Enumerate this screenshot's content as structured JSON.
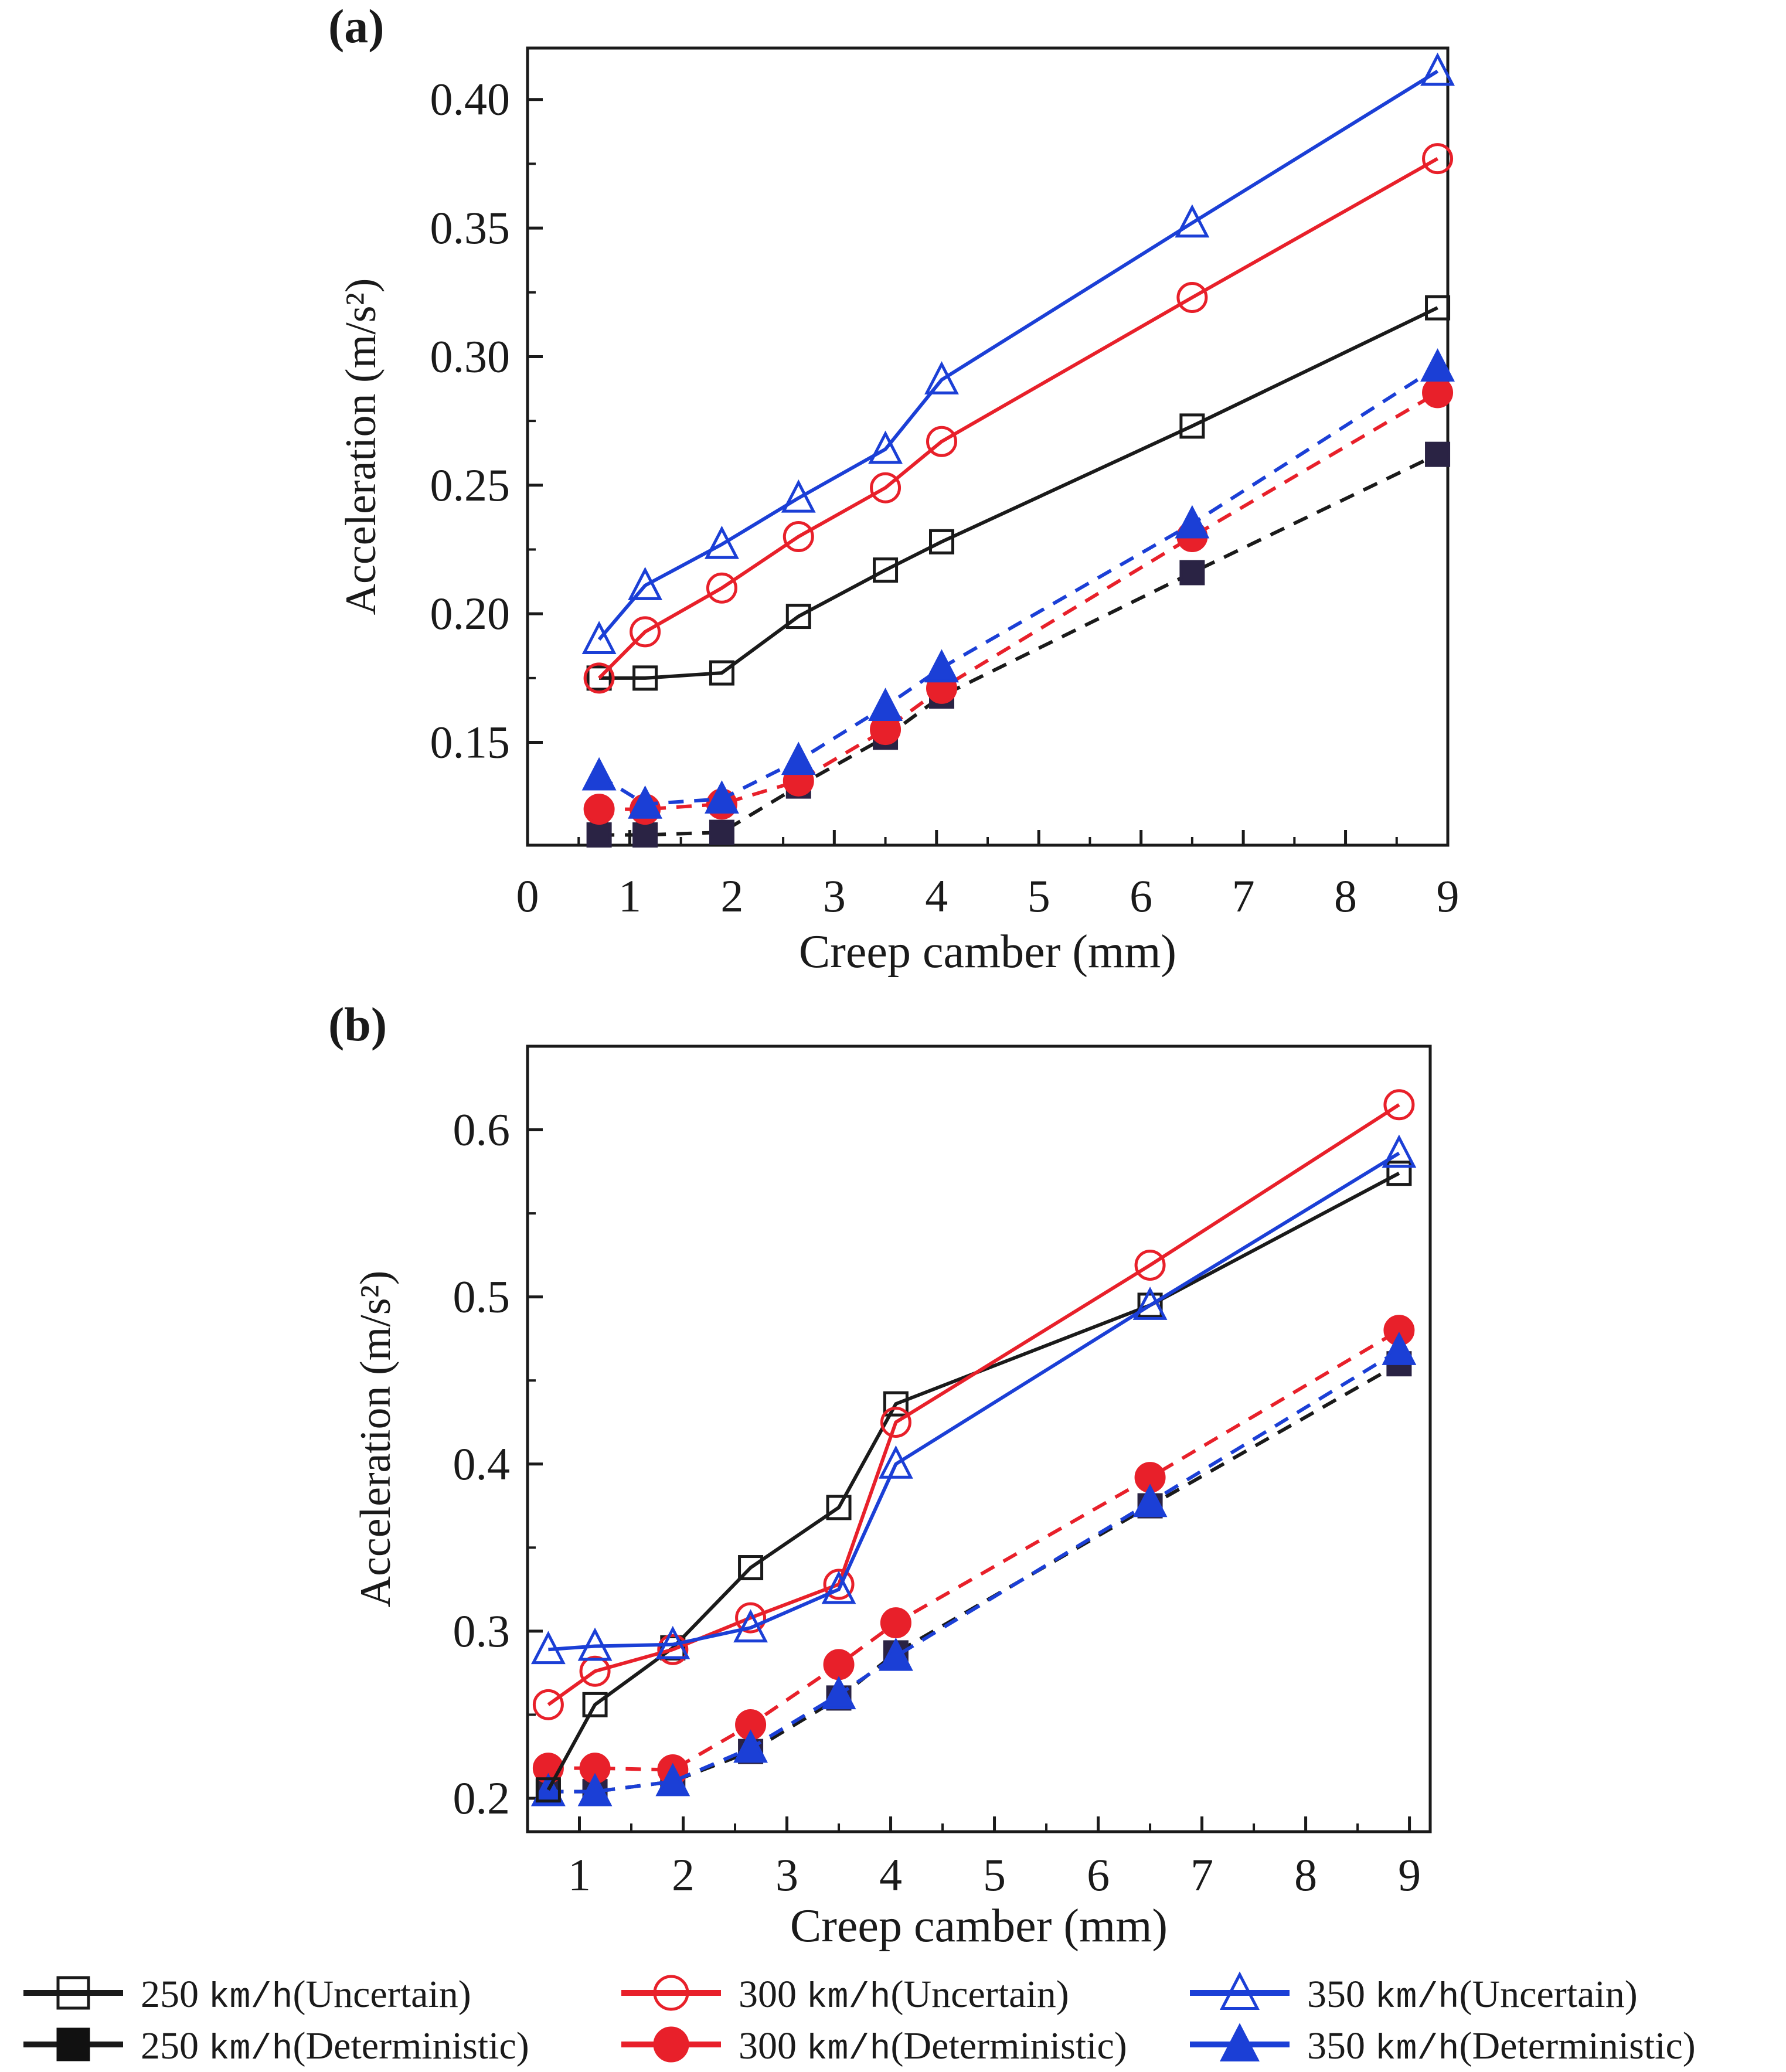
{
  "colors": {
    "s250": "#1a1a1a",
    "s300": "#e8202a",
    "s350": "#1b3fd6",
    "s250_det_fill": "#2a2344"
  },
  "legend": {
    "items": [
      {
        "key": "s250",
        "speed": "250",
        "unit": "km/h",
        "kind": "(Uncertain)",
        "marker": "square",
        "filled": false
      },
      {
        "key": "s250",
        "speed": "250",
        "unit": "km/h",
        "kind": "(Deterministic)",
        "marker": "square",
        "filled": true
      },
      {
        "key": "s300",
        "speed": "300",
        "unit": "km/h",
        "kind": "(Uncertain)",
        "marker": "circle",
        "filled": false
      },
      {
        "key": "s300",
        "speed": "300",
        "unit": "km/h",
        "kind": "(Deterministic)",
        "marker": "circle",
        "filled": true
      },
      {
        "key": "s350",
        "speed": "350",
        "unit": "km/h",
        "kind": "(Uncertain)",
        "marker": "triangle",
        "filled": false
      },
      {
        "key": "s350",
        "speed": "350",
        "unit": "km/h",
        "kind": "(Deterministic)",
        "marker": "triangle",
        "filled": true
      }
    ]
  },
  "chart_data": [
    {
      "panel": "(a)",
      "type": "line",
      "xlabel": "Creep camber (mm)",
      "ylabel": "Acceleration (m/s²)",
      "xlim": [
        0,
        9
      ],
      "ylim": [
        0.11,
        0.42
      ],
      "xticks": [
        "0",
        "1",
        "2",
        "3",
        "4",
        "5",
        "6",
        "7",
        "8",
        "9"
      ],
      "yticks": [
        "0.15",
        "0.20",
        "0.25",
        "0.30",
        "0.35",
        "0.40"
      ],
      "x": [
        0.7,
        1.15,
        1.9,
        2.65,
        3.5,
        4.05,
        6.5,
        8.9
      ],
      "series": [
        {
          "name": "250 km/h (Uncertain)",
          "color": "s250",
          "marker": "square",
          "filled": false,
          "dashed": false,
          "values": [
            0.175,
            0.175,
            0.177,
            0.199,
            0.217,
            0.228,
            0.273,
            0.319
          ]
        },
        {
          "name": "300 km/h (Uncertain)",
          "color": "s300",
          "marker": "circle",
          "filled": false,
          "dashed": false,
          "values": [
            0.175,
            0.193,
            0.21,
            0.23,
            0.249,
            0.267,
            0.323,
            0.377
          ]
        },
        {
          "name": "350 km/h (Uncertain)",
          "color": "s350",
          "marker": "triangle",
          "filled": false,
          "dashed": false,
          "values": [
            0.19,
            0.211,
            0.227,
            0.245,
            0.264,
            0.291,
            0.352,
            0.411
          ]
        },
        {
          "name": "250 km/h (Deterministic)",
          "color": "s250",
          "marker": "square",
          "filled": true,
          "dashed": true,
          "values": [
            0.114,
            0.114,
            0.115,
            0.133,
            0.152,
            0.168,
            0.216,
            0.262
          ]
        },
        {
          "name": "300 km/h (Deterministic)",
          "color": "s300",
          "marker": "circle",
          "filled": true,
          "dashed": true,
          "values": [
            0.124,
            0.124,
            0.126,
            0.135,
            0.155,
            0.171,
            0.23,
            0.286
          ]
        },
        {
          "name": "350 km/h (Deterministic)",
          "color": "s350",
          "marker": "triangle",
          "filled": true,
          "dashed": true,
          "values": [
            0.137,
            0.126,
            0.128,
            0.143,
            0.164,
            0.179,
            0.235,
            0.296
          ]
        }
      ]
    },
    {
      "panel": "(b)",
      "type": "line",
      "xlabel": "Creep camber (mm)",
      "ylabel": "Acceleration (m/s²)",
      "xlim": [
        0.5,
        9.2
      ],
      "ylim": [
        0.18,
        0.65
      ],
      "xticks": [
        "1",
        "2",
        "3",
        "4",
        "5",
        "6",
        "7",
        "8",
        "9"
      ],
      "yticks": [
        "0.2",
        "0.3",
        "0.4",
        "0.5",
        "0.6"
      ],
      "x": [
        0.7,
        1.15,
        1.9,
        2.65,
        3.5,
        4.05,
        6.5,
        8.9
      ],
      "series": [
        {
          "name": "250 km/h (Uncertain)",
          "color": "s250",
          "marker": "square",
          "filled": false,
          "dashed": false,
          "values": [
            0.205,
            0.256,
            0.29,
            0.338,
            0.374,
            0.436,
            0.495,
            0.574
          ]
        },
        {
          "name": "300 km/h (Uncertain)",
          "color": "s300",
          "marker": "circle",
          "filled": false,
          "dashed": false,
          "values": [
            0.256,
            0.276,
            0.289,
            0.308,
            0.328,
            0.425,
            0.519,
            0.615
          ]
        },
        {
          "name": "350 km/h (Uncertain)",
          "color": "s350",
          "marker": "triangle",
          "filled": false,
          "dashed": false,
          "values": [
            0.289,
            0.291,
            0.292,
            0.302,
            0.325,
            0.4,
            0.495,
            0.586
          ]
        },
        {
          "name": "250 km/h (Deterministic)",
          "color": "s250",
          "marker": "square",
          "filled": true,
          "dashed": true,
          "values": [
            0.204,
            0.204,
            0.21,
            0.228,
            0.26,
            0.287,
            0.375,
            0.46
          ]
        },
        {
          "name": "300 km/h (Deterministic)",
          "color": "s300",
          "marker": "circle",
          "filled": true,
          "dashed": true,
          "values": [
            0.218,
            0.218,
            0.217,
            0.244,
            0.28,
            0.305,
            0.392,
            0.48
          ]
        },
        {
          "name": "350 km/h (Deterministic)",
          "color": "s350",
          "marker": "triangle",
          "filled": true,
          "dashed": true,
          "values": [
            0.204,
            0.204,
            0.21,
            0.23,
            0.262,
            0.285,
            0.377,
            0.468
          ]
        }
      ]
    }
  ]
}
